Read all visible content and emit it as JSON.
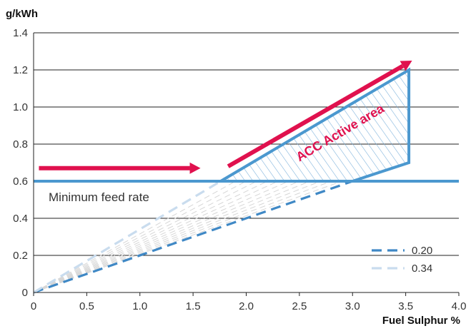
{
  "chart_data": {
    "type": "line",
    "y_unit_label": "g/kWh",
    "xlabel": "Fuel Sulphur %",
    "xlim": [
      0,
      4
    ],
    "ylim": [
      0,
      1.4
    ],
    "x_ticks": [
      "0",
      "0.5",
      "1.0",
      "1.5",
      "2.0",
      "2.5",
      "3.0",
      "3.5",
      "4.0"
    ],
    "y_ticks": [
      "0",
      "0.2",
      "0.4",
      "0.6",
      "0.8",
      "1.0",
      "1.2",
      "1.4"
    ],
    "grid": "horizontal",
    "legend_position": "bottom-right",
    "minimum_feed_rate": {
      "label": "Minimum feed rate",
      "y": 0.6,
      "color": "#4b98cf"
    },
    "series": [
      {
        "name": "0.20",
        "style": "dashed",
        "color": "#3f88c5",
        "x": [
          0,
          3.0
        ],
        "y": [
          0,
          0.6
        ]
      },
      {
        "name": "0.34",
        "style": "dashed",
        "color": "#c9dcee",
        "x": [
          0,
          1.76
        ],
        "y": [
          0,
          0.6
        ]
      }
    ],
    "active_area": {
      "label": "ACC Active area",
      "label_color": "#e0114e",
      "color": "#4b98cf",
      "polygon_x": [
        1.76,
        3.53,
        3.53,
        3.0
      ],
      "polygon_y": [
        0.6,
        1.2,
        0.7,
        0.6
      ]
    },
    "arrows": [
      {
        "color": "#e0114e",
        "x": [
          0.05,
          1.57
        ],
        "y": [
          0.67,
          0.67
        ]
      },
      {
        "color": "#e0114e",
        "x": [
          1.83,
          3.56
        ],
        "y": [
          0.68,
          1.25
        ]
      }
    ],
    "fan_lines": {
      "color": "#d6d6d6",
      "style": "dashed",
      "end_x": [
        1.9,
        2.0,
        2.1,
        2.2,
        2.3,
        2.4,
        2.5,
        2.6,
        2.7,
        2.8,
        2.9
      ],
      "end_y": 0.6
    }
  }
}
